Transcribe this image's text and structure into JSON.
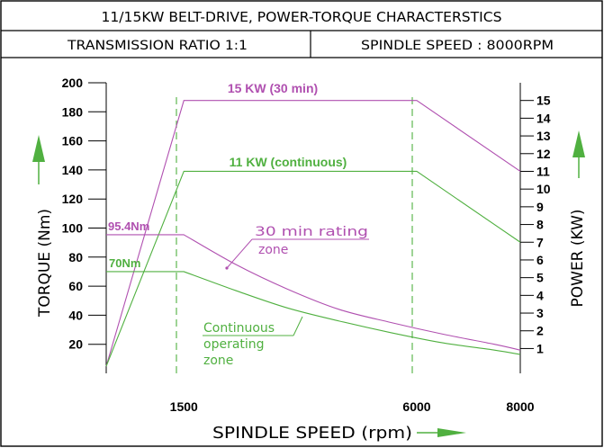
{
  "header": {
    "title": "11/15KW BELT-DRIVE, POWER-TORQUE CHARACTERSTICS",
    "transmission": "TRANSMISSION RATIO 1:1",
    "spindle_speed": "SPINDLE SPEED : 8000RPM"
  },
  "colors": {
    "thirty_min": "#b050b0",
    "continuous": "#50b040",
    "ink": "#000000"
  },
  "chart_data": {
    "type": "line",
    "xlabel": "SPINDLE SPEED (rpm)",
    "ylabel_left": "TORQUE (Nm)",
    "ylabel_right": "POWER (KW)",
    "x_ticks": [
      "1500",
      "6000",
      "8000"
    ],
    "x_tick_values": [
      1500,
      6000,
      8000
    ],
    "xlim": [
      0,
      8000
    ],
    "y_left_ticks": [
      "20",
      "40",
      "60",
      "80",
      "100",
      "120",
      "140",
      "160",
      "180",
      "200"
    ],
    "y_left_tick_values": [
      20,
      40,
      60,
      80,
      100,
      120,
      140,
      160,
      180,
      200
    ],
    "y_left_lim": [
      0,
      200
    ],
    "y_right_ticks": [
      "1",
      "2",
      "3",
      "4",
      "5",
      "6",
      "7",
      "8",
      "9",
      "10",
      "11",
      "12",
      "13",
      "14",
      "15"
    ],
    "y_right_tick_values": [
      1,
      2,
      3,
      4,
      5,
      6,
      7,
      8,
      9,
      10,
      11,
      12,
      13,
      14,
      15
    ],
    "y_right_lim": [
      -0.4,
      16
    ],
    "grid": false,
    "series": [
      {
        "name": "15 KW (30 min)",
        "axis": "right",
        "x": [
          0,
          1500,
          6000,
          8000
        ],
        "y": [
          0,
          15,
          15,
          11
        ]
      },
      {
        "name": "11 KW (continuous)",
        "axis": "right",
        "x": [
          0,
          1500,
          6000,
          8000
        ],
        "y": [
          0,
          11,
          11,
          7
        ]
      },
      {
        "name": "95.4Nm",
        "axis": "left",
        "x": [
          0,
          1500,
          2500,
          3500,
          4500,
          5500,
          6500,
          7500,
          8000
        ],
        "y": [
          95.4,
          95.4,
          75,
          58,
          44,
          35,
          27,
          20,
          16
        ]
      },
      {
        "name": "70Nm",
        "axis": "left",
        "x": [
          0,
          1500,
          2500,
          3500,
          4500,
          5500,
          6500,
          7500,
          8000
        ],
        "y": [
          70,
          70,
          57,
          45,
          36,
          28,
          21,
          16,
          13
        ]
      }
    ],
    "annotations": {
      "thirty_min_zone": [
        "30 min rating",
        "zone"
      ],
      "continuous_zone": [
        "Continuous",
        "operating",
        "zone"
      ]
    }
  }
}
